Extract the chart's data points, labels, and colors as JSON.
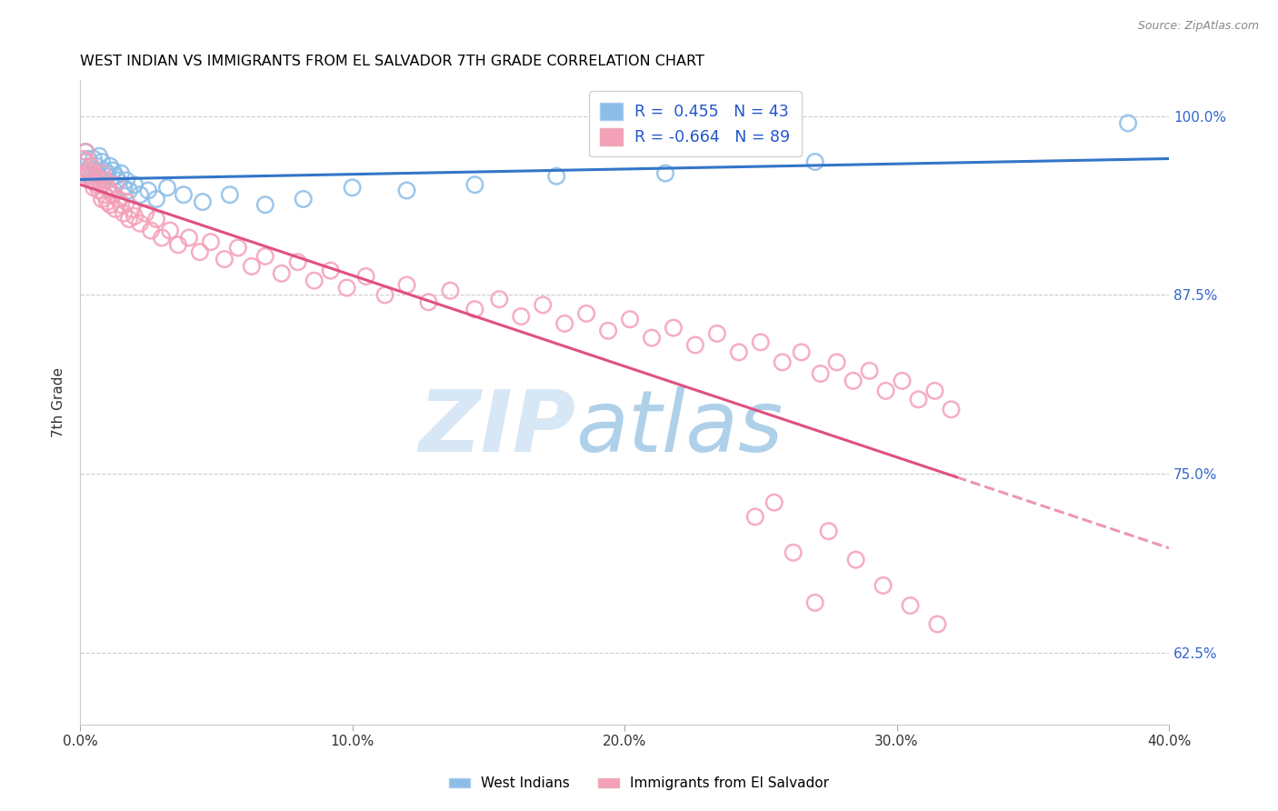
{
  "title": "WEST INDIAN VS IMMIGRANTS FROM EL SALVADOR 7TH GRADE CORRELATION CHART",
  "source": "Source: ZipAtlas.com",
  "ylabel": "7th Grade",
  "xlim": [
    0.0,
    0.4
  ],
  "ylim": [
    0.575,
    1.025
  ],
  "xtick_labels": [
    "0.0%",
    "10.0%",
    "20.0%",
    "30.0%",
    "40.0%"
  ],
  "xtick_vals": [
    0.0,
    0.1,
    0.2,
    0.3,
    0.4
  ],
  "ytick_labels": [
    "62.5%",
    "75.0%",
    "87.5%",
    "100.0%"
  ],
  "ytick_vals": [
    0.625,
    0.75,
    0.875,
    1.0
  ],
  "blue_R": 0.455,
  "blue_N": 43,
  "pink_R": -0.664,
  "pink_N": 89,
  "blue_color": "#8BBDE8",
  "pink_color": "#F4A0B8",
  "blue_line_color": "#3375C8",
  "pink_line_color": "#E05080",
  "legend_label_blue": "West Indians",
  "legend_label_pink": "Immigrants from El Salvador",
  "blue_x": [
    0.001,
    0.002,
    0.002,
    0.003,
    0.003,
    0.004,
    0.004,
    0.005,
    0.005,
    0.006,
    0.006,
    0.007,
    0.007,
    0.008,
    0.008,
    0.009,
    0.01,
    0.01,
    0.011,
    0.012,
    0.013,
    0.014,
    0.015,
    0.016,
    0.017,
    0.018,
    0.02,
    0.022,
    0.025,
    0.028,
    0.032,
    0.038,
    0.045,
    0.055,
    0.068,
    0.082,
    0.1,
    0.12,
    0.145,
    0.175,
    0.215,
    0.27,
    0.385
  ],
  "blue_y": [
    0.96,
    0.968,
    0.975,
    0.962,
    0.97,
    0.958,
    0.965,
    0.97,
    0.955,
    0.965,
    0.96,
    0.972,
    0.958,
    0.968,
    0.952,
    0.962,
    0.96,
    0.958,
    0.965,
    0.962,
    0.958,
    0.955,
    0.96,
    0.95,
    0.955,
    0.948,
    0.952,
    0.945,
    0.948,
    0.942,
    0.95,
    0.945,
    0.94,
    0.945,
    0.938,
    0.942,
    0.95,
    0.948,
    0.952,
    0.958,
    0.96,
    0.968,
    0.995
  ],
  "pink_x": [
    0.001,
    0.002,
    0.002,
    0.003,
    0.003,
    0.004,
    0.004,
    0.005,
    0.005,
    0.006,
    0.006,
    0.007,
    0.007,
    0.008,
    0.008,
    0.009,
    0.009,
    0.01,
    0.01,
    0.011,
    0.011,
    0.012,
    0.013,
    0.013,
    0.014,
    0.015,
    0.016,
    0.017,
    0.018,
    0.019,
    0.02,
    0.022,
    0.024,
    0.026,
    0.028,
    0.03,
    0.033,
    0.036,
    0.04,
    0.044,
    0.048,
    0.053,
    0.058,
    0.063,
    0.068,
    0.074,
    0.08,
    0.086,
    0.092,
    0.098,
    0.105,
    0.112,
    0.12,
    0.128,
    0.136,
    0.145,
    0.154,
    0.162,
    0.17,
    0.178,
    0.186,
    0.194,
    0.202,
    0.21,
    0.218,
    0.226,
    0.234,
    0.242,
    0.25,
    0.258,
    0.265,
    0.272,
    0.278,
    0.284,
    0.29,
    0.296,
    0.302,
    0.308,
    0.314,
    0.32,
    0.248,
    0.262,
    0.275,
    0.285,
    0.295,
    0.305,
    0.315,
    0.27,
    0.255
  ],
  "pink_y": [
    0.97,
    0.975,
    0.968,
    0.962,
    0.958,
    0.965,
    0.955,
    0.96,
    0.95,
    0.958,
    0.952,
    0.955,
    0.948,
    0.96,
    0.942,
    0.955,
    0.945,
    0.95,
    0.94,
    0.948,
    0.938,
    0.945,
    0.952,
    0.935,
    0.942,
    0.938,
    0.932,
    0.94,
    0.928,
    0.935,
    0.93,
    0.925,
    0.932,
    0.92,
    0.928,
    0.915,
    0.92,
    0.91,
    0.915,
    0.905,
    0.912,
    0.9,
    0.908,
    0.895,
    0.902,
    0.89,
    0.898,
    0.885,
    0.892,
    0.88,
    0.888,
    0.875,
    0.882,
    0.87,
    0.878,
    0.865,
    0.872,
    0.86,
    0.868,
    0.855,
    0.862,
    0.85,
    0.858,
    0.845,
    0.852,
    0.84,
    0.848,
    0.835,
    0.842,
    0.828,
    0.835,
    0.82,
    0.828,
    0.815,
    0.822,
    0.808,
    0.815,
    0.802,
    0.808,
    0.795,
    0.72,
    0.695,
    0.71,
    0.69,
    0.672,
    0.658,
    0.645,
    0.66,
    0.73
  ]
}
